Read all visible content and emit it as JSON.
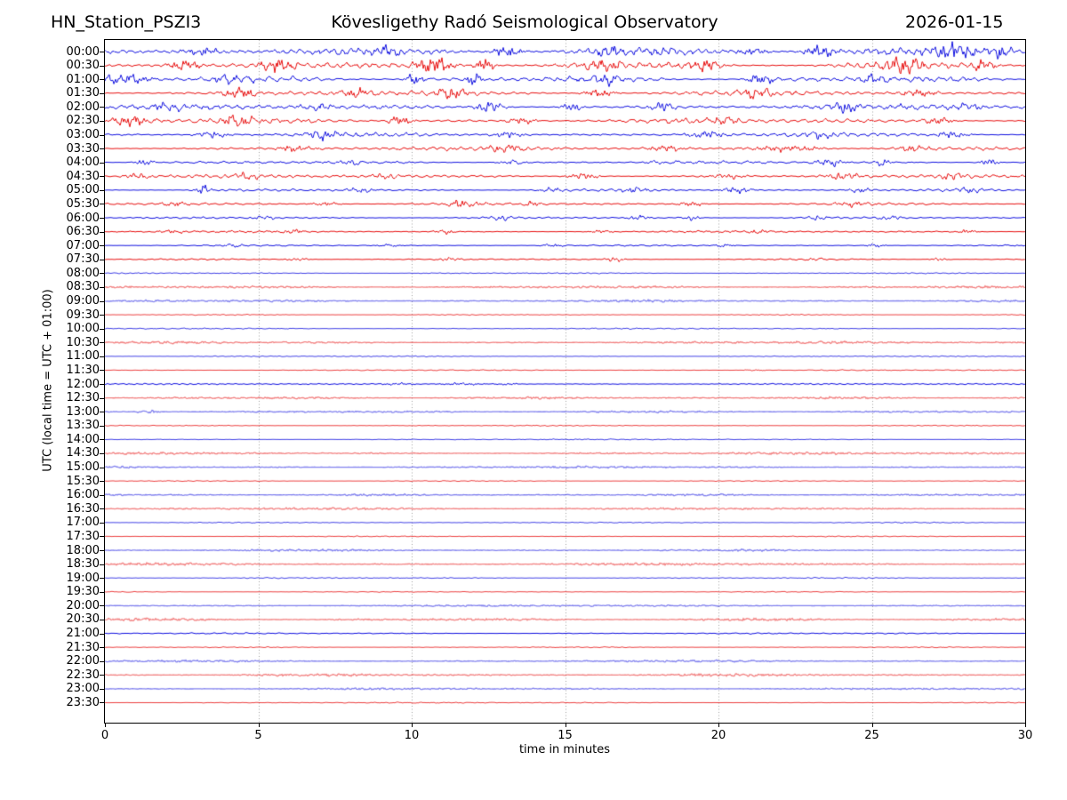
{
  "header": {
    "station": "HN_Station_PSZI3",
    "observatory": "Kövesligethy Radó Seismological Observatory",
    "date": "2026-01-15"
  },
  "y_axis": {
    "label": "UTC (local time = UTC + 01:00)",
    "tick_labels": [
      "00:00",
      "00:30",
      "01:00",
      "01:30",
      "02:00",
      "02:30",
      "03:00",
      "03:30",
      "04:00",
      "04:30",
      "05:00",
      "05:30",
      "06:00",
      "06:30",
      "07:00",
      "07:30",
      "08:00",
      "08:30",
      "09:00",
      "09:30",
      "10:00",
      "10:30",
      "11:00",
      "11:30",
      "12:00",
      "12:30",
      "13:00",
      "13:30",
      "14:00",
      "14:30",
      "15:00",
      "15:30",
      "16:00",
      "16:30",
      "17:00",
      "17:30",
      "18:00",
      "18:30",
      "19:00",
      "19:30",
      "20:00",
      "20:30",
      "21:00",
      "21:30",
      "22:00",
      "22:30",
      "23:00",
      "23:30"
    ]
  },
  "x_axis": {
    "label": "time in minutes",
    "ticks": [
      0,
      5,
      10,
      15,
      20,
      25,
      30
    ],
    "range": [
      0,
      30
    ],
    "gridline_minutes": [
      5,
      10,
      15,
      20,
      25
    ]
  },
  "colors": {
    "trace_blue": "#0000dd",
    "trace_red": "#e60000",
    "grid": "#999999",
    "axis": "#000000",
    "text": "#000000",
    "background": "#ffffff"
  },
  "chart_data": {
    "type": "line",
    "subtype": "helicorder-drum-plot",
    "title": "Kövesligethy Radó Seismological Observatory",
    "xlabel": "time in minutes",
    "ylabel": "UTC (local time = UTC + 01:00)",
    "xlim": [
      0,
      30
    ],
    "minutes_per_line": 30,
    "lines_count": 48,
    "grid": "vertical-dotted-every-5-min",
    "legend": "none",
    "noise_seed": 42,
    "rows": [
      {
        "t": "00:00",
        "c": "blue",
        "a": 5.0,
        "f": 0,
        "b": [
          [
            3.2,
            3.5,
            0.5
          ],
          [
            9.3,
            4.0,
            0.4
          ],
          [
            13.1,
            4.5,
            0.5
          ],
          [
            16.4,
            3.5,
            0.4
          ],
          [
            21.1,
            3.0,
            0.5
          ],
          [
            23.3,
            4.5,
            0.5
          ],
          [
            27.6,
            5.5,
            0.7
          ],
          [
            29.2,
            4.5,
            0.4
          ]
        ]
      },
      {
        "t": "00:30",
        "c": "red",
        "a": 4.2,
        "f": 0,
        "b": [
          [
            2.6,
            4.0,
            0.5
          ],
          [
            5.6,
            5.0,
            0.6
          ],
          [
            10.7,
            8.5,
            0.5
          ],
          [
            12.4,
            6.0,
            0.3
          ],
          [
            16.2,
            4.0,
            0.5
          ],
          [
            19.6,
            4.5,
            0.5
          ],
          [
            26.0,
            6.5,
            0.6
          ],
          [
            28.6,
            4.5,
            0.4
          ]
        ]
      },
      {
        "t": "01:00",
        "c": "blue",
        "a": 3.8,
        "f": 0,
        "b": [
          [
            0.6,
            4.5,
            0.8
          ],
          [
            4.0,
            3.5,
            0.5
          ],
          [
            10.1,
            5.5,
            0.25
          ],
          [
            12.0,
            6.5,
            0.25
          ],
          [
            16.3,
            4.0,
            0.4
          ],
          [
            21.4,
            4.5,
            0.4
          ],
          [
            25.1,
            3.5,
            0.4
          ]
        ]
      },
      {
        "t": "01:30",
        "c": "red",
        "a": 3.3,
        "f": 0,
        "b": [
          [
            4.4,
            4.5,
            0.5
          ],
          [
            8.2,
            3.5,
            0.5
          ],
          [
            11.3,
            4.5,
            0.5
          ],
          [
            16.1,
            3.5,
            0.5
          ],
          [
            21.2,
            3.5,
            0.5
          ],
          [
            26.5,
            3.0,
            0.6
          ]
        ]
      },
      {
        "t": "02:00",
        "c": "blue",
        "a": 3.2,
        "f": 0,
        "b": [
          [
            2.1,
            3.0,
            0.5
          ],
          [
            6.9,
            3.5,
            0.4
          ],
          [
            12.6,
            6.5,
            0.4
          ],
          [
            15.3,
            3.5,
            0.4
          ],
          [
            18.2,
            3.5,
            0.5
          ],
          [
            24.1,
            3.5,
            0.5
          ],
          [
            28.1,
            3.5,
            0.4
          ]
        ]
      },
      {
        "t": "02:30",
        "c": "red",
        "a": 3.2,
        "f": 0,
        "b": [
          [
            0.9,
            4.0,
            0.6
          ],
          [
            4.3,
            5.0,
            0.5
          ],
          [
            9.6,
            4.0,
            0.4
          ],
          [
            13.6,
            3.5,
            0.4
          ],
          [
            20.2,
            3.0,
            0.5
          ],
          [
            27.1,
            3.5,
            0.5
          ]
        ]
      },
      {
        "t": "03:00",
        "c": "blue",
        "a": 2.6,
        "f": 0,
        "b": [
          [
            3.5,
            3.0,
            0.5
          ],
          [
            7.1,
            3.5,
            0.5
          ],
          [
            13.2,
            3.0,
            0.5
          ],
          [
            19.6,
            3.5,
            0.6
          ],
          [
            23.3,
            3.0,
            0.5
          ],
          [
            27.6,
            3.0,
            0.5
          ]
        ]
      },
      {
        "t": "03:30",
        "c": "red",
        "a": 2.3,
        "f": 0,
        "b": [
          [
            6.2,
            2.5,
            0.6
          ],
          [
            13.1,
            3.0,
            0.5
          ],
          [
            18.3,
            2.5,
            0.6
          ],
          [
            22.2,
            2.8,
            1.2
          ],
          [
            26.3,
            2.5,
            0.6
          ]
        ]
      },
      {
        "t": "04:00",
        "c": "blue",
        "a": 1.7,
        "f": 0,
        "b": [
          [
            1.3,
            2.8,
            0.3
          ],
          [
            8.1,
            2.0,
            0.4
          ],
          [
            13.3,
            2.8,
            0.4
          ],
          [
            18.2,
            2.0,
            0.5
          ],
          [
            23.6,
            4.2,
            0.4
          ],
          [
            25.3,
            3.2,
            0.3
          ],
          [
            28.8,
            3.2,
            0.3
          ]
        ]
      },
      {
        "t": "04:30",
        "c": "red",
        "a": 2.0,
        "f": 0,
        "b": [
          [
            1.1,
            2.5,
            0.4
          ],
          [
            4.6,
            2.8,
            0.4
          ],
          [
            9.2,
            2.2,
            0.5
          ],
          [
            15.6,
            2.8,
            0.5
          ],
          [
            20.3,
            2.2,
            0.5
          ],
          [
            24.1,
            3.2,
            0.6
          ],
          [
            27.6,
            2.8,
            0.4
          ]
        ]
      },
      {
        "t": "05:00",
        "c": "blue",
        "a": 1.6,
        "f": 0,
        "b": [
          [
            3.2,
            4.2,
            0.25
          ],
          [
            8.3,
            2.0,
            0.4
          ],
          [
            14.6,
            2.2,
            0.4
          ],
          [
            17.3,
            2.5,
            0.4
          ],
          [
            20.6,
            2.8,
            0.5
          ],
          [
            24.6,
            2.2,
            0.4
          ],
          [
            28.2,
            2.0,
            0.4
          ]
        ]
      },
      {
        "t": "05:30",
        "c": "red",
        "a": 1.5,
        "f": 0,
        "b": [
          [
            2.3,
            1.8,
            0.5
          ],
          [
            7.2,
            1.8,
            0.5
          ],
          [
            11.6,
            3.2,
            0.5
          ],
          [
            13.9,
            2.5,
            0.3
          ],
          [
            19.1,
            2.2,
            0.4
          ],
          [
            24.3,
            1.8,
            0.5
          ]
        ]
      },
      {
        "t": "06:00",
        "c": "blue",
        "a": 1.2,
        "f": 0,
        "b": [
          [
            5.2,
            1.5,
            0.4
          ],
          [
            12.9,
            2.2,
            0.4
          ],
          [
            17.4,
            2.8,
            0.3
          ],
          [
            19.1,
            2.2,
            0.3
          ],
          [
            23.2,
            1.8,
            0.4
          ],
          [
            25.6,
            1.8,
            0.4
          ]
        ]
      },
      {
        "t": "06:30",
        "c": "red",
        "a": 1.2,
        "f": 0,
        "b": [
          [
            2.2,
            1.5,
            0.4
          ],
          [
            6.1,
            1.8,
            0.4
          ],
          [
            11.1,
            2.2,
            0.3
          ],
          [
            16.2,
            1.5,
            0.4
          ],
          [
            21.3,
            1.5,
            0.4
          ],
          [
            28.1,
            1.8,
            0.3
          ]
        ]
      },
      {
        "t": "07:00",
        "c": "blue",
        "a": 0.9,
        "f": 0,
        "b": [
          [
            4.2,
            1.2,
            0.4
          ],
          [
            9.3,
            1.2,
            0.4
          ],
          [
            14.6,
            1.4,
            0.4
          ],
          [
            20.2,
            1.2,
            0.4
          ],
          [
            25.1,
            1.6,
            0.3
          ]
        ]
      },
      {
        "t": "07:30",
        "c": "red",
        "a": 0.9,
        "f": 0,
        "b": [
          [
            6.3,
            1.2,
            0.4
          ],
          [
            11.2,
            1.2,
            0.4
          ],
          [
            16.6,
            2.0,
            0.3
          ],
          [
            23.1,
            1.4,
            0.3
          ],
          [
            27.2,
            1.2,
            0.3
          ]
        ]
      },
      {
        "t": "08:00",
        "c": "blue",
        "a": 0.65,
        "f": 0,
        "b": []
      },
      {
        "t": "08:30",
        "c": "red",
        "a": 0.95,
        "f": 1,
        "b": []
      },
      {
        "t": "09:00",
        "c": "blue",
        "a": 0.95,
        "f": 1,
        "b": []
      },
      {
        "t": "09:30",
        "c": "red",
        "a": 0.55,
        "f": 0,
        "b": []
      },
      {
        "t": "10:00",
        "c": "blue",
        "a": 0.7,
        "f": 0,
        "b": []
      },
      {
        "t": "10:30",
        "c": "red",
        "a": 0.95,
        "f": 1,
        "b": []
      },
      {
        "t": "11:00",
        "c": "blue",
        "a": 0.6,
        "f": 0,
        "b": []
      },
      {
        "t": "11:30",
        "c": "red",
        "a": 0.6,
        "f": 0,
        "b": [
          [
            21.2,
            0.8,
            0.4
          ]
        ]
      },
      {
        "t": "12:00",
        "c": "blue",
        "a": 0.85,
        "f": 0,
        "b": [
          [
            9.6,
            1.0,
            0.5
          ],
          [
            11.6,
            1.3,
            0.6
          ],
          [
            13.1,
            1.0,
            0.4
          ]
        ]
      },
      {
        "t": "12:30",
        "c": "red",
        "a": 0.95,
        "f": 1,
        "b": []
      },
      {
        "t": "13:00",
        "c": "blue",
        "a": 0.8,
        "f": 1,
        "b": [
          [
            1.4,
            1.4,
            0.3
          ]
        ]
      },
      {
        "t": "13:30",
        "c": "red",
        "a": 0.55,
        "f": 0,
        "b": []
      },
      {
        "t": "14:00",
        "c": "blue",
        "a": 0.6,
        "f": 0,
        "b": []
      },
      {
        "t": "14:30",
        "c": "red",
        "a": 0.95,
        "f": 1,
        "b": []
      },
      {
        "t": "15:00",
        "c": "blue",
        "a": 0.8,
        "f": 1,
        "b": []
      },
      {
        "t": "15:30",
        "c": "red",
        "a": 0.5,
        "f": 0,
        "b": []
      },
      {
        "t": "16:00",
        "c": "blue",
        "a": 0.8,
        "f": 1,
        "b": []
      },
      {
        "t": "16:30",
        "c": "red",
        "a": 0.95,
        "f": 1,
        "b": []
      },
      {
        "t": "17:00",
        "c": "blue",
        "a": 0.65,
        "f": 0,
        "b": []
      },
      {
        "t": "17:30",
        "c": "red",
        "a": 0.5,
        "f": 0,
        "b": []
      },
      {
        "t": "18:00",
        "c": "blue",
        "a": 0.8,
        "f": 1,
        "b": []
      },
      {
        "t": "18:30",
        "c": "red",
        "a": 1.05,
        "f": 1,
        "b": []
      },
      {
        "t": "19:00",
        "c": "blue",
        "a": 0.65,
        "f": 0,
        "b": []
      },
      {
        "t": "19:30",
        "c": "red",
        "a": 0.5,
        "f": 0,
        "b": []
      },
      {
        "t": "20:00",
        "c": "blue",
        "a": 0.75,
        "f": 1,
        "b": []
      },
      {
        "t": "20:30",
        "c": "red",
        "a": 1.05,
        "f": 1,
        "b": []
      },
      {
        "t": "21:00",
        "c": "blue",
        "a": 0.8,
        "f": 0,
        "b": []
      },
      {
        "t": "21:30",
        "c": "red",
        "a": 0.5,
        "f": 0,
        "b": []
      },
      {
        "t": "22:00",
        "c": "blue",
        "a": 0.8,
        "f": 1,
        "b": []
      },
      {
        "t": "22:30",
        "c": "red",
        "a": 1.05,
        "f": 1,
        "b": []
      },
      {
        "t": "23:00",
        "c": "blue",
        "a": 0.8,
        "f": 1,
        "b": []
      },
      {
        "t": "23:30",
        "c": "red",
        "a": 0.6,
        "f": 0,
        "b": []
      }
    ]
  }
}
